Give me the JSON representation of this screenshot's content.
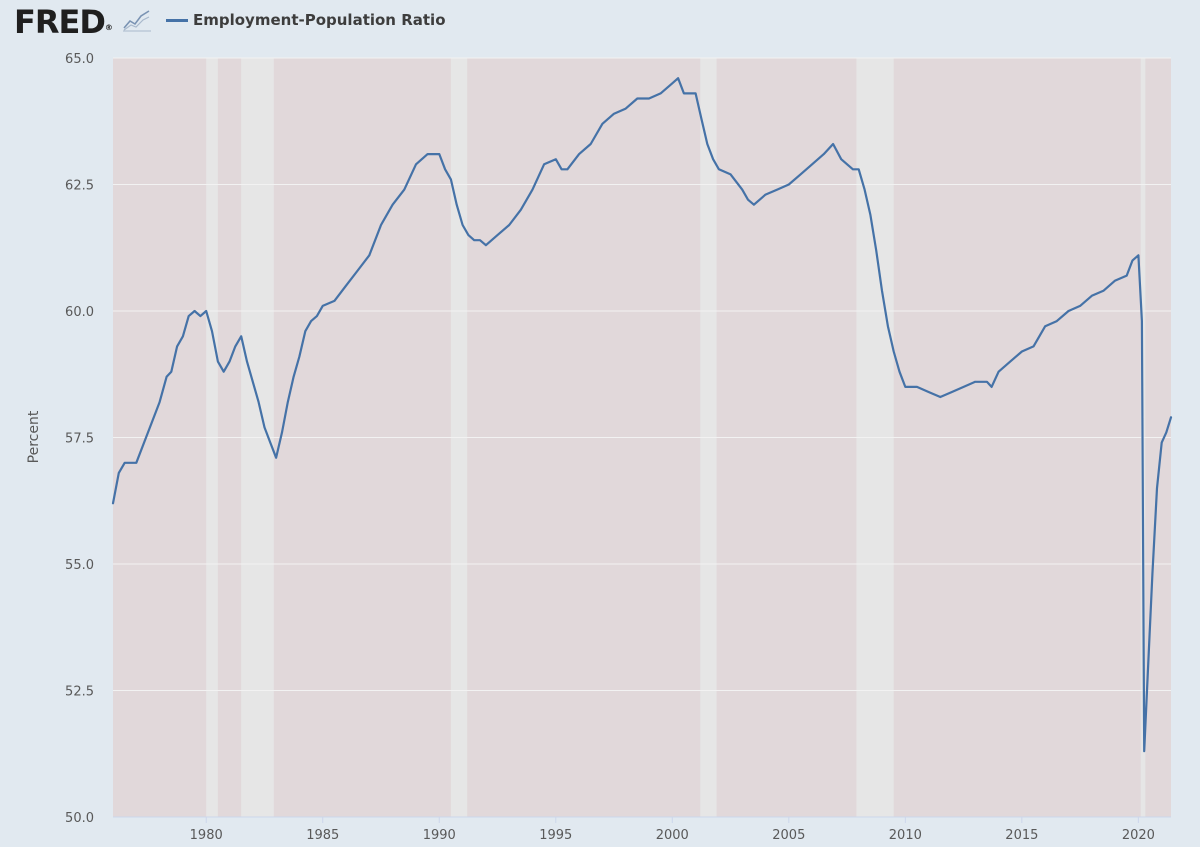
{
  "header": {
    "logo_text": "FRED",
    "logo_mark": "®",
    "logo_icon": "line-graph-icon",
    "legend_label": "Employment-Population Ratio"
  },
  "colors": {
    "line": "#4572a7",
    "plot_background": "#e1d8da",
    "recession_band": "#e6e6e6",
    "page_background": "#e1e9f0",
    "grid": "#f2f2f2",
    "tick_text": "#595959"
  },
  "chart_data": {
    "type": "line",
    "title": "",
    "xlabel": "",
    "ylabel": "Percent",
    "xlim": [
      1976.0,
      2021.4
    ],
    "ylim": [
      50.0,
      65.0
    ],
    "grid": "horizontal",
    "legend_position": "top-left",
    "x_ticks": [
      "1980",
      "1985",
      "1990",
      "1995",
      "2000",
      "2005",
      "2010",
      "2015",
      "2020"
    ],
    "y_ticks": [
      "50.0",
      "52.5",
      "55.0",
      "57.5",
      "60.0",
      "62.5",
      "65.0"
    ],
    "recessions": [
      [
        1980.0,
        1980.5
      ],
      [
        1981.5,
        1982.9
      ],
      [
        1990.5,
        1991.2
      ],
      [
        2001.2,
        2001.9
      ],
      [
        2007.9,
        2009.5
      ],
      [
        2020.1,
        2020.3
      ]
    ],
    "series": [
      {
        "name": "Employment-Population Ratio",
        "x": [
          1976.0,
          1976.25,
          1976.5,
          1977.0,
          1977.5,
          1978.0,
          1978.3,
          1978.5,
          1978.75,
          1979.0,
          1979.25,
          1979.5,
          1979.75,
          1980.0,
          1980.25,
          1980.5,
          1980.75,
          1981.0,
          1981.25,
          1981.5,
          1981.75,
          1982.0,
          1982.25,
          1982.5,
          1982.75,
          1983.0,
          1983.25,
          1983.5,
          1983.75,
          1984.0,
          1984.25,
          1984.5,
          1984.75,
          1985.0,
          1985.5,
          1986.0,
          1986.5,
          1987.0,
          1987.5,
          1988.0,
          1988.5,
          1989.0,
          1989.5,
          1990.0,
          1990.25,
          1990.5,
          1990.75,
          1991.0,
          1991.25,
          1991.5,
          1991.75,
          1992.0,
          1992.5,
          1993.0,
          1993.5,
          1994.0,
          1994.5,
          1995.0,
          1995.25,
          1995.5,
          1996.0,
          1996.5,
          1997.0,
          1997.5,
          1998.0,
          1998.5,
          1999.0,
          1999.5,
          2000.0,
          2000.25,
          2000.5,
          2000.75,
          2001.0,
          2001.25,
          2001.5,
          2001.75,
          2002.0,
          2002.5,
          2003.0,
          2003.25,
          2003.5,
          2004.0,
          2004.5,
          2005.0,
          2005.5,
          2006.0,
          2006.5,
          2006.9,
          2007.25,
          2007.5,
          2007.75,
          2008.0,
          2008.25,
          2008.5,
          2008.75,
          2009.0,
          2009.25,
          2009.5,
          2009.75,
          2010.0,
          2010.5,
          2011.0,
          2011.5,
          2012.0,
          2012.5,
          2013.0,
          2013.5,
          2013.7,
          2014.0,
          2014.5,
          2015.0,
          2015.5,
          2016.0,
          2016.5,
          2017.0,
          2017.5,
          2018.0,
          2018.5,
          2019.0,
          2019.5,
          2019.75,
          2020.0,
          2020.15,
          2020.25,
          2020.4,
          2020.6,
          2020.8,
          2021.0,
          2021.2,
          2021.4
        ],
        "values": [
          56.2,
          56.8,
          57.0,
          57.0,
          57.6,
          58.2,
          58.7,
          58.8,
          59.3,
          59.5,
          59.9,
          60.0,
          59.9,
          60.0,
          59.6,
          59.0,
          58.8,
          59.0,
          59.3,
          59.5,
          59.0,
          58.6,
          58.2,
          57.7,
          57.4,
          57.1,
          57.6,
          58.2,
          58.7,
          59.1,
          59.6,
          59.8,
          59.9,
          60.1,
          60.2,
          60.5,
          60.8,
          61.1,
          61.7,
          62.1,
          62.4,
          62.9,
          63.1,
          63.1,
          62.8,
          62.6,
          62.1,
          61.7,
          61.5,
          61.4,
          61.4,
          61.3,
          61.5,
          61.7,
          62.0,
          62.4,
          62.9,
          63.0,
          62.8,
          62.8,
          63.1,
          63.3,
          63.7,
          63.9,
          64.0,
          64.2,
          64.2,
          64.3,
          64.5,
          64.6,
          64.3,
          64.3,
          64.3,
          63.8,
          63.3,
          63.0,
          62.8,
          62.7,
          62.4,
          62.2,
          62.1,
          62.3,
          62.4,
          62.5,
          62.7,
          62.9,
          63.1,
          63.3,
          63.0,
          62.9,
          62.8,
          62.8,
          62.4,
          61.9,
          61.2,
          60.4,
          59.7,
          59.2,
          58.8,
          58.5,
          58.5,
          58.4,
          58.3,
          58.4,
          58.5,
          58.6,
          58.6,
          58.5,
          58.8,
          59.0,
          59.2,
          59.3,
          59.7,
          59.8,
          60.0,
          60.1,
          60.3,
          60.4,
          60.6,
          60.7,
          61.0,
          61.1,
          59.8,
          51.3,
          52.8,
          54.8,
          56.5,
          57.4,
          57.6,
          57.9
        ]
      }
    ]
  }
}
